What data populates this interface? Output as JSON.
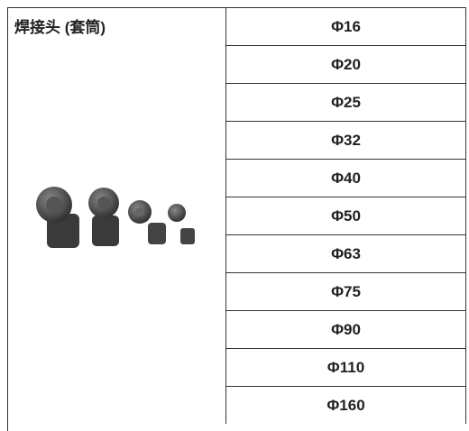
{
  "header": {
    "title": "焊接头 (套筒)"
  },
  "table": {
    "rows": [
      "Φ16",
      "Φ20",
      "Φ25",
      "Φ32",
      "Φ40",
      "Φ50",
      "Φ63",
      "Φ75",
      "Φ90",
      "Φ110",
      "Φ160"
    ]
  }
}
